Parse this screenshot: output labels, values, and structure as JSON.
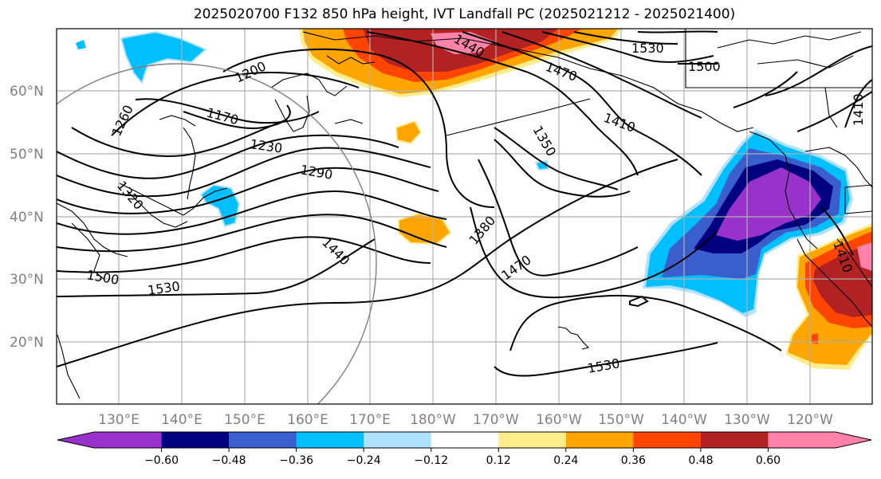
{
  "title": "2025020700 F132 850 hPa height, IVT Landfall PC (2025021212 - 2025021400)",
  "lat_labels": [
    "60°N",
    "50°N",
    "40°N",
    "30°N",
    "20°N"
  ],
  "lon_labels": [
    "130°E",
    "140°E",
    "150°E",
    "160°E",
    "170°E",
    "180°W",
    "170°W",
    "160°W",
    "150°W",
    "140°W",
    "130°W",
    "120°W"
  ],
  "contour_labels": [
    "1530",
    "1500",
    "1470",
    "1410",
    "1410",
    "1440",
    "1350",
    "1380",
    "1470",
    "1530",
    "1530",
    "1500",
    "1440",
    "1320",
    "1290",
    "1230",
    "1260",
    "1200",
    "1170",
    "1410"
  ],
  "colorbar": {
    "colors": [
      "#9932cc",
      "#000080",
      "#3a5fcd",
      "#00bfff",
      "#b0e2ff",
      "#ffffff",
      "#ffec8b",
      "#ffa500",
      "#ff4500",
      "#b22222",
      "#ff82ab"
    ],
    "ticks": [
      "−0.60",
      "−0.48",
      "−0.36",
      "−0.24",
      "−0.12",
      "0.12",
      "0.24",
      "0.36",
      "0.48",
      "0.60"
    ]
  }
}
